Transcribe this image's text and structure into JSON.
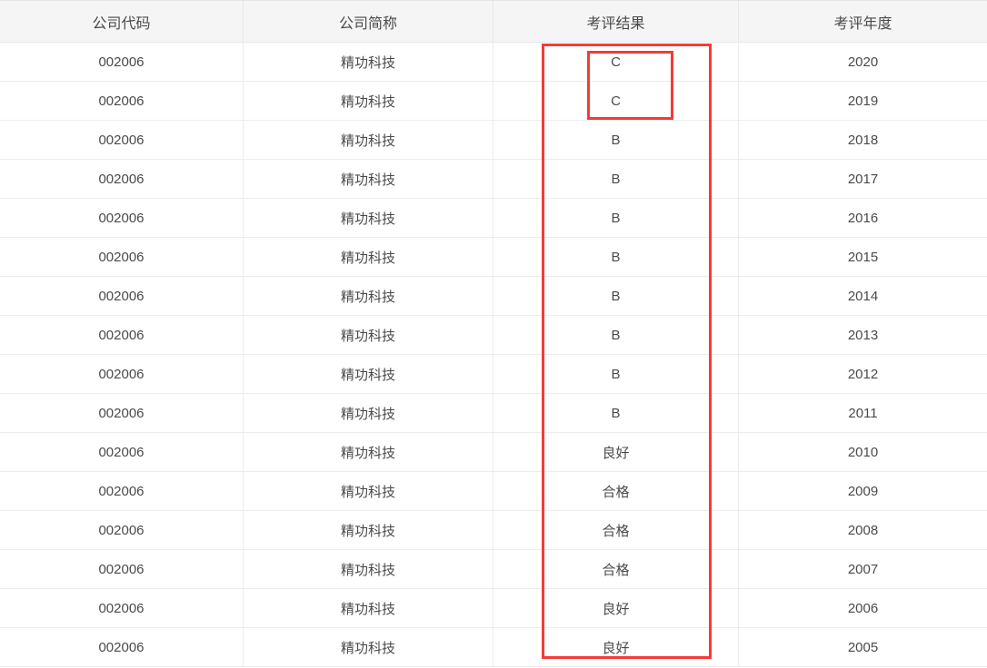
{
  "table": {
    "headers": [
      "公司代码",
      "公司简称",
      "考评结果",
      "考评年度"
    ],
    "rows": [
      {
        "code": "002006",
        "name": "精功科技",
        "result": "C",
        "year": "2020"
      },
      {
        "code": "002006",
        "name": "精功科技",
        "result": "C",
        "year": "2019"
      },
      {
        "code": "002006",
        "name": "精功科技",
        "result": "B",
        "year": "2018"
      },
      {
        "code": "002006",
        "name": "精功科技",
        "result": "B",
        "year": "2017"
      },
      {
        "code": "002006",
        "name": "精功科技",
        "result": "B",
        "year": "2016"
      },
      {
        "code": "002006",
        "name": "精功科技",
        "result": "B",
        "year": "2015"
      },
      {
        "code": "002006",
        "name": "精功科技",
        "result": "B",
        "year": "2014"
      },
      {
        "code": "002006",
        "name": "精功科技",
        "result": "B",
        "year": "2013"
      },
      {
        "code": "002006",
        "name": "精功科技",
        "result": "B",
        "year": "2012"
      },
      {
        "code": "002006",
        "name": "精功科技",
        "result": "B",
        "year": "2011"
      },
      {
        "code": "002006",
        "name": "精功科技",
        "result": "良好",
        "year": "2010"
      },
      {
        "code": "002006",
        "name": "精功科技",
        "result": "合格",
        "year": "2009"
      },
      {
        "code": "002006",
        "name": "精功科技",
        "result": "合格",
        "year": "2008"
      },
      {
        "code": "002006",
        "name": "精功科技",
        "result": "合格",
        "year": "2007"
      },
      {
        "code": "002006",
        "name": "精功科技",
        "result": "良好",
        "year": "2006"
      },
      {
        "code": "002006",
        "name": "精功科技",
        "result": "良好",
        "year": "2005"
      }
    ]
  },
  "annotations": {
    "outer_rect_label": "highlight-result-column",
    "inner_rect_label": "highlight-c-results",
    "color": "#f53b35"
  },
  "colors": {
    "header_background": "#f5f5f6",
    "row_background": "#ffffff",
    "border": "#ececec",
    "text": "#4a4a4a"
  }
}
